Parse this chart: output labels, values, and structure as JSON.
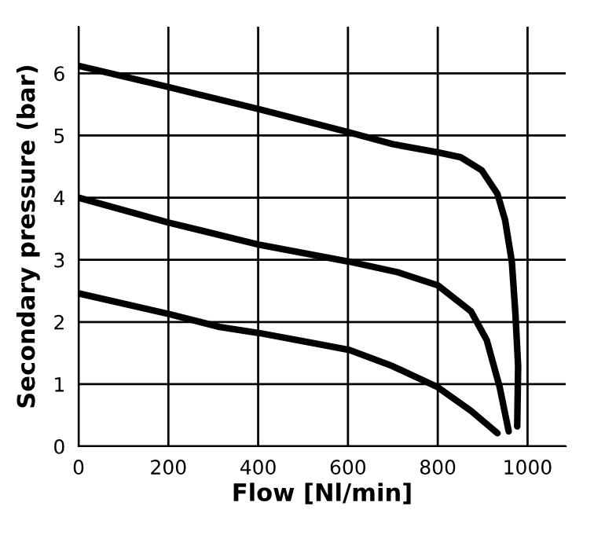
{
  "chart_data": {
    "type": "line",
    "xlabel": "Flow [Nl/min]",
    "ylabel": "Secondary pressure (bar)",
    "xlim": [
      0,
      1085
    ],
    "ylim": [
      0,
      6.75
    ],
    "xticks": [
      0,
      200,
      400,
      600,
      800,
      1000
    ],
    "yticks": [
      0,
      1,
      2,
      3,
      4,
      5,
      6
    ],
    "grid": true,
    "legend": false,
    "marker": "none",
    "line_style": "solid",
    "series": [
      {
        "color": "#000000",
        "x": [
          0,
          200,
          404,
          603,
          700,
          800,
          851,
          898,
          933,
          950,
          965,
          973,
          979,
          977
        ],
        "values": [
          6.12,
          5.78,
          5.42,
          5.05,
          4.86,
          4.73,
          4.65,
          4.44,
          4.06,
          3.64,
          2.97,
          2.13,
          1.29,
          0.32
        ]
      },
      {
        "color": "#000000",
        "x": [
          0,
          200,
          404,
          603,
          711,
          800,
          874,
          909,
          938,
          958
        ],
        "values": [
          4.0,
          3.6,
          3.24,
          2.97,
          2.8,
          2.59,
          2.17,
          1.71,
          0.95,
          0.24
        ]
      },
      {
        "color": "#000000",
        "x": [
          0,
          200,
          314,
          404,
          501,
          603,
          699,
          800,
          874,
          933
        ],
        "values": [
          2.46,
          2.13,
          1.92,
          1.82,
          1.69,
          1.55,
          1.29,
          0.95,
          0.57,
          0.21
        ]
      }
    ]
  }
}
